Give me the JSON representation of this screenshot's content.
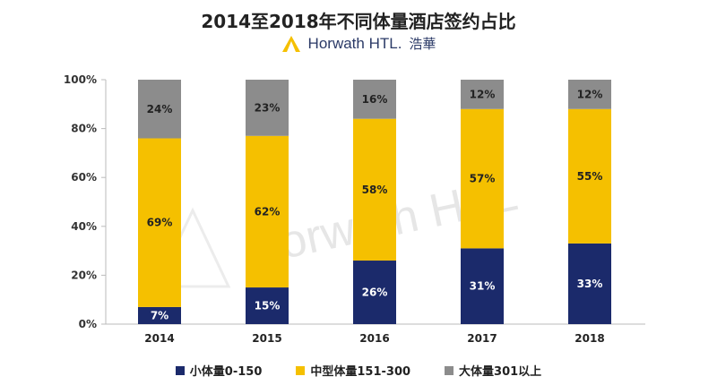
{
  "title": "2014至2018年不同体量酒店签约占比",
  "brand": {
    "name": "Horwath HTL.",
    "cn": "浩華",
    "watermark": "Horwath HTL"
  },
  "colors": {
    "small": "#1b2a6b",
    "medium": "#f5c000",
    "large": "#8c8c8c",
    "axis": "#bbbbbb"
  },
  "chart_data": {
    "type": "bar",
    "stacked": true,
    "categories": [
      "2014",
      "2015",
      "2016",
      "2017",
      "2018"
    ],
    "series": [
      {
        "name": "小体量0-150",
        "values": [
          7,
          15,
          26,
          31,
          33
        ],
        "color": "#1b2a6b",
        "label_color": "#ffffff"
      },
      {
        "name": "中型体量151-300",
        "values": [
          69,
          62,
          58,
          57,
          55
        ],
        "color": "#f5c000",
        "label_color": "#222222"
      },
      {
        "name": "大体量301以上",
        "values": [
          24,
          23,
          16,
          12,
          12
        ],
        "color": "#8c8c8c",
        "label_color": "#222222"
      }
    ],
    "ylim": [
      0,
      100
    ],
    "yticks": [
      "0%",
      "20%",
      "40%",
      "60%",
      "80%",
      "100%"
    ],
    "legend_position": "bottom"
  }
}
